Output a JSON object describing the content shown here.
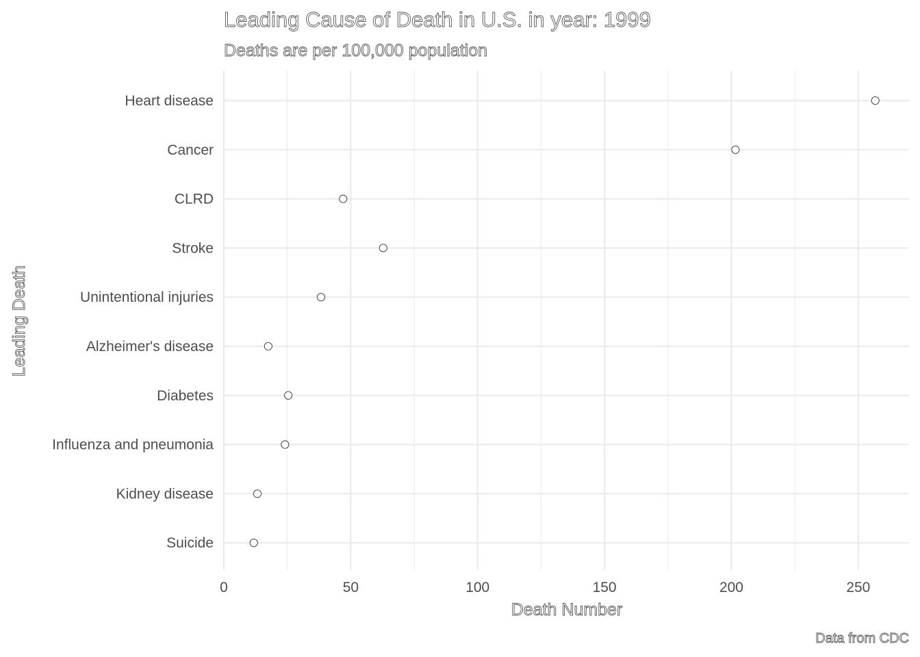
{
  "chart_data": {
    "type": "scatter",
    "title": "Leading Cause of Death in U.S. in year: 1999",
    "subtitle": "Deaths are per 100,000 population",
    "xlabel": "Death Number",
    "ylabel": "Leading Death",
    "caption": "Data from CDC",
    "xlim": [
      0,
      270
    ],
    "x_ticks": [
      0,
      50,
      100,
      150,
      200,
      250
    ],
    "grid": true,
    "legend": "none",
    "categories": [
      "Heart disease",
      "Cancer",
      "CLRD",
      "Stroke",
      "Unintentional injuries",
      "Alzheimer's disease",
      "Diabetes",
      "Influenza and pneumonia",
      "Kidney disease",
      "Suicide"
    ],
    "values": [
      256.7,
      201.6,
      47.0,
      62.8,
      38.3,
      17.5,
      25.4,
      24.1,
      13.2,
      11.8
    ],
    "point_style": {
      "fill": "#ffffff",
      "stroke": "#333333"
    }
  }
}
